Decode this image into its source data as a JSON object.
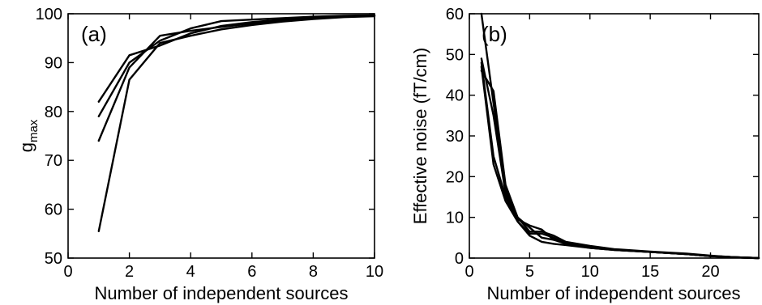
{
  "chart_data": [
    {
      "type": "line",
      "panel_label": "(a)",
      "xlabel": "Number of independent sources",
      "ylabel_main": "g",
      "ylabel_sub": "max",
      "xlim": [
        0,
        10
      ],
      "ylim": [
        50,
        100
      ],
      "xticks": [
        0,
        2,
        4,
        6,
        8,
        10
      ],
      "yticks": [
        50,
        60,
        70,
        80,
        90,
        100
      ],
      "grid": false,
      "series": [
        {
          "x": [
            1,
            2,
            3,
            4,
            5,
            6,
            7,
            8,
            9,
            10
          ],
          "values": [
            82,
            91.5,
            93.5,
            96,
            97.5,
            98.3,
            98.8,
            99.2,
            99.5,
            99.6
          ]
        },
        {
          "x": [
            1,
            2,
            3,
            4,
            5,
            6,
            7,
            8,
            9,
            10
          ],
          "values": [
            79,
            90,
            94.5,
            97,
            98.5,
            98.8,
            99.1,
            99.4,
            99.6,
            99.7
          ]
        },
        {
          "x": [
            1,
            2,
            3,
            4,
            5,
            6,
            7,
            8,
            9,
            10
          ],
          "values": [
            74,
            89,
            95.5,
            96.5,
            97.3,
            98,
            98.7,
            99.1,
            99.4,
            99.6
          ]
        },
        {
          "x": [
            1,
            2,
            3,
            4,
            5,
            6,
            7,
            8,
            9,
            10
          ],
          "values": [
            55.5,
            86.5,
            94,
            95.5,
            96.8,
            97.7,
            98.4,
            98.9,
            99.3,
            99.5
          ]
        }
      ]
    },
    {
      "type": "line",
      "panel_label": "(b)",
      "xlabel": "Number of independent sources",
      "ylabel": "Effective noise (fT/cm)",
      "xlim": [
        0,
        24
      ],
      "ylim": [
        0,
        60
      ],
      "xticks": [
        0,
        5,
        10,
        15,
        20
      ],
      "yticks": [
        0,
        10,
        20,
        30,
        40,
        50,
        60
      ],
      "grid": false,
      "series": [
        {
          "x": [
            1,
            2,
            3,
            4,
            5,
            6,
            7,
            8,
            10,
            12,
            15,
            18,
            20,
            22,
            24
          ],
          "values": [
            60,
            38,
            17,
            10,
            7.5,
            5,
            4.5,
            3.5,
            2.5,
            2,
            1.5,
            1,
            0.5,
            0.2,
            0
          ]
        },
        {
          "x": [
            1,
            2,
            3,
            4,
            5,
            6,
            7,
            8,
            10,
            12,
            15,
            18,
            20,
            22,
            24
          ],
          "values": [
            48,
            25,
            15,
            9.5,
            8,
            7,
            4.5,
            3.8,
            2.8,
            2,
            1.5,
            1,
            0.5,
            0.2,
            0
          ]
        },
        {
          "x": [
            1,
            2,
            3,
            4,
            5,
            6,
            7,
            8,
            10,
            12,
            15,
            18,
            20,
            22,
            24
          ],
          "values": [
            46,
            41,
            18,
            10,
            6.5,
            6.5,
            5.5,
            4,
            3,
            2.2,
            1.6,
            1.1,
            0.6,
            0.2,
            0
          ]
        },
        {
          "x": [
            1,
            2,
            3,
            4,
            5,
            6,
            7,
            8,
            10,
            12,
            15,
            18,
            20,
            22,
            24
          ],
          "values": [
            47,
            23,
            14,
            9,
            5.5,
            4,
            3.5,
            3.2,
            2.5,
            2,
            1.5,
            1,
            0.5,
            0.2,
            0
          ]
        },
        {
          "x": [
            1,
            2,
            3,
            4,
            5,
            6,
            7,
            8,
            10,
            12,
            15,
            18,
            20,
            22,
            24
          ],
          "values": [
            49,
            35,
            16,
            9,
            6,
            6,
            5,
            3.5,
            2.6,
            2.1,
            1.5,
            1,
            0.5,
            0.2,
            0
          ]
        }
      ]
    }
  ]
}
